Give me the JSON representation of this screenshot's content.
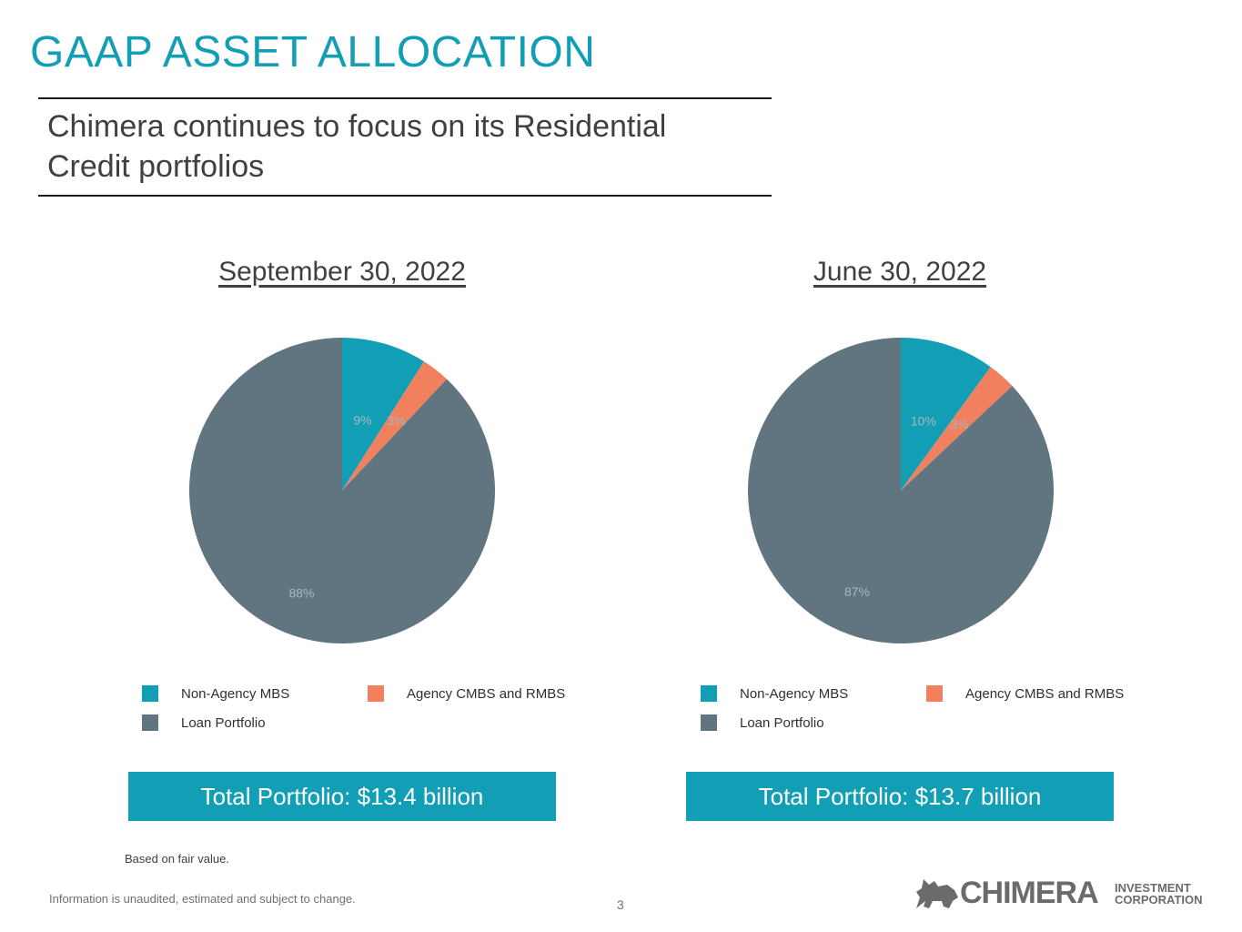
{
  "slide": {
    "title": "GAAP ASSET ALLOCATION",
    "subtitle": "Chimera continues to focus on its Residential Credit portfolios",
    "note": "Based on fair value.",
    "disclaimer": "Information is unaudited, estimated and subject to change.",
    "page_number": "3",
    "logo": {
      "name": "CHIMERA",
      "sub_line1": "INVESTMENT",
      "sub_line2": "CORPORATION",
      "icon": "chimera-beast-icon"
    }
  },
  "colors": {
    "accent": "#129fb5",
    "non_agency": "#129fb5",
    "agency": "#f0805e",
    "loan": "#607580"
  },
  "chart_data": [
    {
      "type": "pie",
      "title": "September 30, 2022",
      "labels": [
        "Non-Agency MBS",
        "Agency CMBS and RMBS",
        "Loan Portfolio"
      ],
      "values": [
        9,
        3,
        88
      ],
      "value_labels": [
        "9%",
        "3%",
        "88%"
      ],
      "legend": "bottom",
      "total": "Total Portfolio: $13.4 billion"
    },
    {
      "type": "pie",
      "title": "June 30, 2022",
      "labels": [
        "Non-Agency MBS",
        "Agency CMBS and RMBS",
        "Loan Portfolio"
      ],
      "values": [
        10,
        3,
        87
      ],
      "value_labels": [
        "10%",
        "3%",
        "87%"
      ],
      "legend": "bottom",
      "total": "Total Portfolio: $13.7 billion"
    }
  ]
}
